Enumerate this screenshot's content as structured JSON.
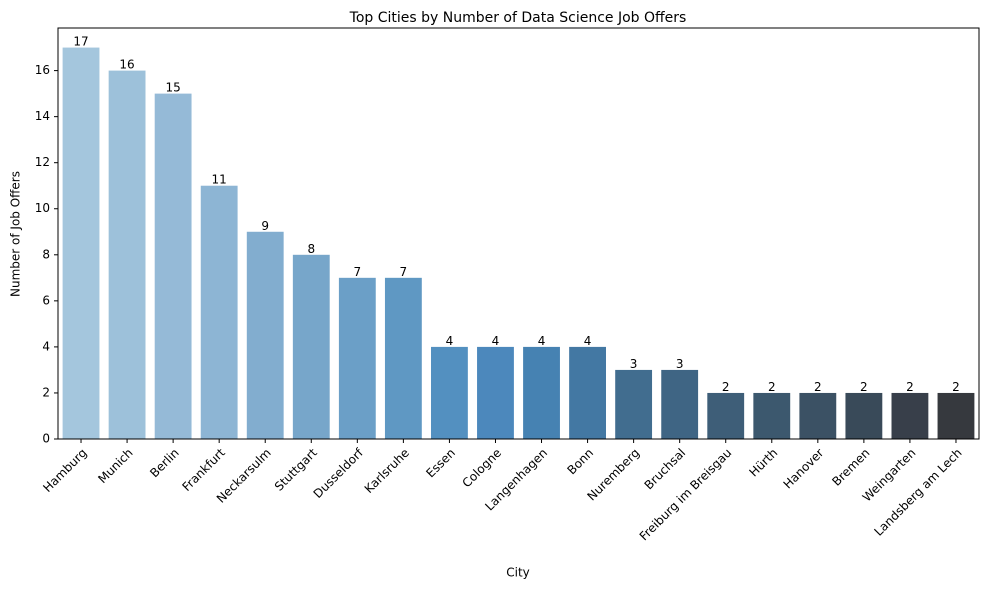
{
  "chart_data": {
    "type": "bar",
    "title": "Top Cities by Number of Data Science Job Offers",
    "x_label": "City",
    "y_label": "Number of Job Offers",
    "categories": [
      "Hamburg",
      "Munich",
      "Berlin",
      "Frankfurt",
      "Neckarsulm",
      "Stuttgart",
      "Dusseldorf",
      "Karlsruhe",
      "Essen",
      "Cologne",
      "Langenhagen",
      "Bonn",
      "Nuremberg",
      "Bruchsal",
      "Freiburg im Breisgau",
      "Hürth",
      "Hanover",
      "Bremen",
      "Weingarten",
      "Landsberg am Lech"
    ],
    "values": [
      17,
      16,
      15,
      11,
      9,
      8,
      7,
      7,
      4,
      4,
      4,
      4,
      3,
      3,
      2,
      2,
      2,
      2,
      2,
      2
    ],
    "colors": [
      "#a4c6dd",
      "#9dc1da",
      "#95bad7",
      "#8db5d4",
      "#82adcf",
      "#77a6ca",
      "#6b9fc7",
      "#5f98c3",
      "#5390c0",
      "#4c88bc",
      "#4682b2",
      "#4378a3",
      "#416d8f",
      "#3f6584",
      "#3e5e78",
      "#3c586e",
      "#3b5164",
      "#394a59",
      "#383f4a",
      "#36393e"
    ],
    "ylim": [
      0,
      17.85
    ],
    "yticks": [
      0,
      2,
      4,
      6,
      8,
      10,
      12,
      14,
      16
    ],
    "grid": false
  }
}
